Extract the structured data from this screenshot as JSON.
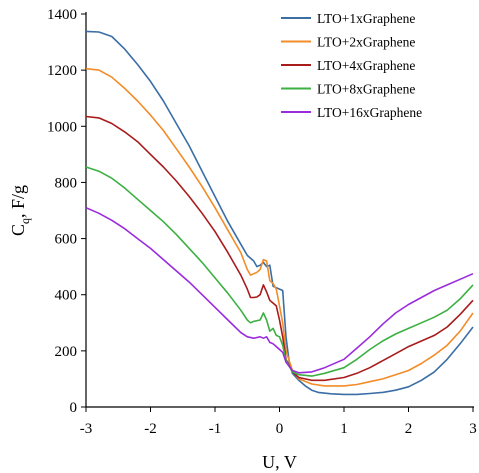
{
  "chart_data": {
    "type": "line",
    "title": "",
    "xlabel": "U, V",
    "ylabel_main": "C",
    "ylabel_sub": "q",
    "ylabel_rest": ", F/g",
    "xlim": [
      -3,
      3
    ],
    "ylim": [
      0,
      1400
    ],
    "xticks": [
      -3,
      -2,
      -1,
      0,
      1,
      2,
      3
    ],
    "yticks": [
      0,
      200,
      400,
      600,
      800,
      1000,
      1200,
      1400
    ],
    "grid": false,
    "legend_position": "top-right",
    "series": [
      {
        "name": "LTO+1xGraphene",
        "color": "#3a6ea5",
        "points": [
          [
            -3,
            1338
          ],
          [
            -2.8,
            1336
          ],
          [
            -2.6,
            1320
          ],
          [
            -2.4,
            1275
          ],
          [
            -2.2,
            1220
          ],
          [
            -2,
            1160
          ],
          [
            -1.8,
            1090
          ],
          [
            -1.6,
            1010
          ],
          [
            -1.4,
            930
          ],
          [
            -1.2,
            840
          ],
          [
            -1,
            750
          ],
          [
            -0.8,
            660
          ],
          [
            -0.6,
            580
          ],
          [
            -0.5,
            540
          ],
          [
            -0.4,
            520
          ],
          [
            -0.35,
            500
          ],
          [
            -0.3,
            505
          ],
          [
            -0.25,
            515
          ],
          [
            -0.2,
            500
          ],
          [
            -0.15,
            505
          ],
          [
            -0.1,
            430
          ],
          [
            -0.05,
            425
          ],
          [
            0,
            420
          ],
          [
            0.05,
            415
          ],
          [
            0.1,
            250
          ],
          [
            0.15,
            160
          ],
          [
            0.2,
            120
          ],
          [
            0.3,
            95
          ],
          [
            0.4,
            75
          ],
          [
            0.5,
            60
          ],
          [
            0.6,
            52
          ],
          [
            0.8,
            47
          ],
          [
            1,
            45
          ],
          [
            1.2,
            45
          ],
          [
            1.4,
            48
          ],
          [
            1.6,
            52
          ],
          [
            1.8,
            60
          ],
          [
            2,
            72
          ],
          [
            2.2,
            95
          ],
          [
            2.4,
            125
          ],
          [
            2.6,
            170
          ],
          [
            2.8,
            225
          ],
          [
            3,
            285
          ]
        ]
      },
      {
        "name": "LTO+2xGraphene",
        "color": "#f28c28",
        "points": [
          [
            -3,
            1205
          ],
          [
            -2.8,
            1200
          ],
          [
            -2.6,
            1175
          ],
          [
            -2.4,
            1135
          ],
          [
            -2.2,
            1090
          ],
          [
            -2,
            1040
          ],
          [
            -1.8,
            985
          ],
          [
            -1.6,
            920
          ],
          [
            -1.4,
            855
          ],
          [
            -1.2,
            785
          ],
          [
            -1,
            710
          ],
          [
            -0.8,
            630
          ],
          [
            -0.6,
            550
          ],
          [
            -0.5,
            490
          ],
          [
            -0.45,
            470
          ],
          [
            -0.4,
            475
          ],
          [
            -0.35,
            480
          ],
          [
            -0.3,
            490
          ],
          [
            -0.25,
            525
          ],
          [
            -0.2,
            520
          ],
          [
            -0.15,
            450
          ],
          [
            -0.1,
            440
          ],
          [
            -0.05,
            420
          ],
          [
            0,
            360
          ],
          [
            0.05,
            300
          ],
          [
            0.1,
            200
          ],
          [
            0.2,
            130
          ],
          [
            0.3,
            100
          ],
          [
            0.5,
            82
          ],
          [
            0.7,
            75
          ],
          [
            1,
            75
          ],
          [
            1.2,
            80
          ],
          [
            1.4,
            90
          ],
          [
            1.6,
            100
          ],
          [
            1.8,
            115
          ],
          [
            2,
            130
          ],
          [
            2.2,
            155
          ],
          [
            2.4,
            185
          ],
          [
            2.6,
            220
          ],
          [
            2.8,
            270
          ],
          [
            3,
            335
          ]
        ]
      },
      {
        "name": "LTO+4xGraphene",
        "color": "#a81c1c",
        "points": [
          [
            -3,
            1035
          ],
          [
            -2.8,
            1030
          ],
          [
            -2.6,
            1010
          ],
          [
            -2.4,
            980
          ],
          [
            -2.2,
            945
          ],
          [
            -2,
            900
          ],
          [
            -1.8,
            855
          ],
          [
            -1.6,
            805
          ],
          [
            -1.4,
            750
          ],
          [
            -1.2,
            690
          ],
          [
            -1,
            625
          ],
          [
            -0.8,
            550
          ],
          [
            -0.6,
            470
          ],
          [
            -0.5,
            420
          ],
          [
            -0.45,
            390
          ],
          [
            -0.4,
            390
          ],
          [
            -0.35,
            392
          ],
          [
            -0.3,
            400
          ],
          [
            -0.25,
            435
          ],
          [
            -0.2,
            410
          ],
          [
            -0.15,
            380
          ],
          [
            -0.1,
            370
          ],
          [
            -0.05,
            360
          ],
          [
            0,
            310
          ],
          [
            0.05,
            250
          ],
          [
            0.1,
            170
          ],
          [
            0.2,
            125
          ],
          [
            0.3,
            105
          ],
          [
            0.5,
            95
          ],
          [
            0.7,
            95
          ],
          [
            1,
            105
          ],
          [
            1.2,
            120
          ],
          [
            1.4,
            140
          ],
          [
            1.6,
            165
          ],
          [
            1.8,
            190
          ],
          [
            2,
            215
          ],
          [
            2.2,
            235
          ],
          [
            2.4,
            255
          ],
          [
            2.6,
            285
          ],
          [
            2.8,
            330
          ],
          [
            3,
            380
          ]
        ]
      },
      {
        "name": "LTO+8xGraphene",
        "color": "#3cb043",
        "points": [
          [
            -3,
            855
          ],
          [
            -2.8,
            840
          ],
          [
            -2.6,
            815
          ],
          [
            -2.4,
            780
          ],
          [
            -2.2,
            740
          ],
          [
            -2,
            700
          ],
          [
            -1.8,
            660
          ],
          [
            -1.6,
            615
          ],
          [
            -1.4,
            565
          ],
          [
            -1.2,
            515
          ],
          [
            -1,
            460
          ],
          [
            -0.8,
            405
          ],
          [
            -0.6,
            345
          ],
          [
            -0.5,
            310
          ],
          [
            -0.45,
            300
          ],
          [
            -0.4,
            305
          ],
          [
            -0.3,
            310
          ],
          [
            -0.25,
            335
          ],
          [
            -0.2,
            310
          ],
          [
            -0.15,
            270
          ],
          [
            -0.1,
            280
          ],
          [
            -0.05,
            255
          ],
          [
            0,
            250
          ],
          [
            0.05,
            220
          ],
          [
            0.1,
            165
          ],
          [
            0.2,
            125
          ],
          [
            0.3,
            115
          ],
          [
            0.5,
            110
          ],
          [
            0.7,
            120
          ],
          [
            1,
            140
          ],
          [
            1.2,
            170
          ],
          [
            1.4,
            205
          ],
          [
            1.6,
            235
          ],
          [
            1.8,
            260
          ],
          [
            2,
            280
          ],
          [
            2.2,
            300
          ],
          [
            2.4,
            320
          ],
          [
            2.6,
            345
          ],
          [
            2.8,
            385
          ],
          [
            3,
            435
          ]
        ]
      },
      {
        "name": "LTO+16xGraphene",
        "color": "#9a2cdc",
        "points": [
          [
            -3,
            710
          ],
          [
            -2.8,
            690
          ],
          [
            -2.6,
            665
          ],
          [
            -2.4,
            635
          ],
          [
            -2.2,
            600
          ],
          [
            -2,
            565
          ],
          [
            -1.8,
            525
          ],
          [
            -1.6,
            485
          ],
          [
            -1.4,
            445
          ],
          [
            -1.2,
            400
          ],
          [
            -1,
            355
          ],
          [
            -0.8,
            310
          ],
          [
            -0.6,
            265
          ],
          [
            -0.5,
            250
          ],
          [
            -0.4,
            245
          ],
          [
            -0.3,
            250
          ],
          [
            -0.25,
            245
          ],
          [
            -0.2,
            250
          ],
          [
            -0.15,
            230
          ],
          [
            -0.1,
            225
          ],
          [
            -0.05,
            215
          ],
          [
            0,
            205
          ],
          [
            0.05,
            195
          ],
          [
            0.1,
            160
          ],
          [
            0.2,
            130
          ],
          [
            0.3,
            122
          ],
          [
            0.5,
            125
          ],
          [
            0.7,
            140
          ],
          [
            1,
            170
          ],
          [
            1.2,
            210
          ],
          [
            1.4,
            250
          ],
          [
            1.6,
            295
          ],
          [
            1.8,
            335
          ],
          [
            2,
            365
          ],
          [
            2.2,
            390
          ],
          [
            2.4,
            415
          ],
          [
            2.6,
            435
          ],
          [
            2.8,
            455
          ],
          [
            3,
            475
          ]
        ]
      }
    ]
  }
}
